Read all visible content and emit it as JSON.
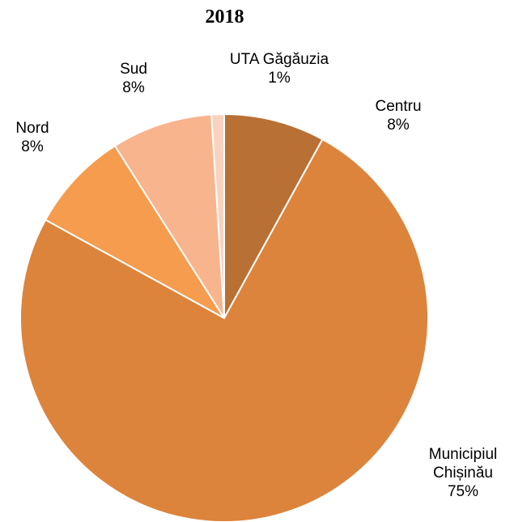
{
  "chart_data": {
    "type": "pie",
    "title": "2018",
    "categories": [
      "Centru",
      "Municipiul Chișinău",
      "Nord",
      "Sud",
      "UTA Găgăuzia"
    ],
    "values": [
      8,
      75,
      8,
      8,
      1
    ],
    "value_labels": [
      "8%",
      "75%",
      "8%",
      "8%",
      "1%"
    ],
    "colors": [
      "#b87035",
      "#dc843c",
      "#f59c4e",
      "#f7b48d",
      "#f9d3c0"
    ]
  }
}
